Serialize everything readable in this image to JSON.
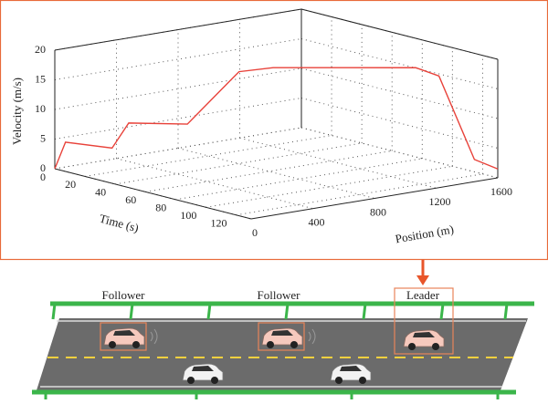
{
  "chart_data": {
    "type": "line3d",
    "x_label": "Position (m)",
    "y_label": "Time (s)",
    "z_label": "Velocity (m/s)",
    "xlim": [
      0,
      1600
    ],
    "xticks": [
      0,
      400,
      800,
      1200,
      1600
    ],
    "ylim": [
      0,
      130
    ],
    "yticks": [
      0,
      20,
      40,
      60,
      80,
      100,
      120
    ],
    "zlim": [
      0,
      20
    ],
    "zticks": [
      0,
      5,
      10,
      15,
      20
    ],
    "grid": true,
    "series": [
      {
        "color": "#e8423a",
        "x": [
          0,
          40,
          205,
          264,
          478,
          666,
          790,
          1303,
          1385,
          1517,
          1600
        ],
        "y": [
          0,
          3,
          17,
          22,
          39,
          54,
          64,
          106,
          113,
          123,
          130
        ],
        "z": [
          0,
          4.5,
          3.7,
          8,
          8,
          17,
          17.8,
          18.3,
          17,
          3,
          1.5
        ]
      }
    ]
  },
  "diagram": {
    "labels": [
      "Follower",
      "Follower",
      "Leader"
    ]
  }
}
